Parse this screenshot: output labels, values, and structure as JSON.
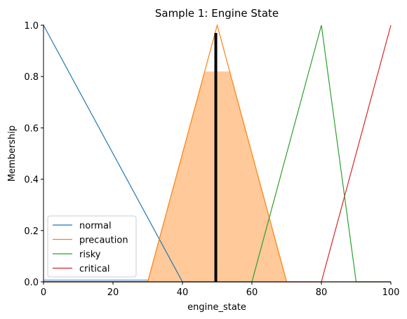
{
  "chart_data": {
    "type": "line",
    "title": "Sample 1: Engine State",
    "xlabel": "engine_state",
    "ylabel": "Membership",
    "xlim": [
      0,
      100
    ],
    "ylim": [
      0,
      1.0
    ],
    "x_ticks": [
      "0",
      "20",
      "40",
      "60",
      "80",
      "100"
    ],
    "y_ticks": [
      "0.0",
      "0.2",
      "0.4",
      "0.6",
      "0.8",
      "1.0"
    ],
    "grid": false,
    "legend_position": "lower-left",
    "series": [
      {
        "name": "normal",
        "color": "#1f77b4",
        "x": [
          0,
          40,
          100
        ],
        "y": [
          1.0,
          0.0,
          0.0
        ]
      },
      {
        "name": "precaution",
        "color": "#ff7f0e",
        "x": [
          0,
          30,
          50,
          70,
          100
        ],
        "y": [
          0.0,
          0.0,
          1.0,
          0.0,
          0.0
        ]
      },
      {
        "name": "risky",
        "color": "#2ca02c",
        "x": [
          0,
          60,
          80,
          90,
          100
        ],
        "y": [
          0.0,
          0.0,
          1.0,
          0.0,
          0.0
        ]
      },
      {
        "name": "critical",
        "color": "#d62728",
        "x": [
          0,
          80,
          100
        ],
        "y": [
          0.0,
          0.0,
          1.0
        ]
      }
    ],
    "activation": [
      {
        "series": "normal",
        "level": 0.01,
        "color": "#aec7e8"
      },
      {
        "series": "precaution",
        "level": 0.82,
        "color": "#ffc999"
      }
    ],
    "crisp_output": {
      "x": 49.6,
      "top": 0.97,
      "color": "#000000"
    }
  }
}
